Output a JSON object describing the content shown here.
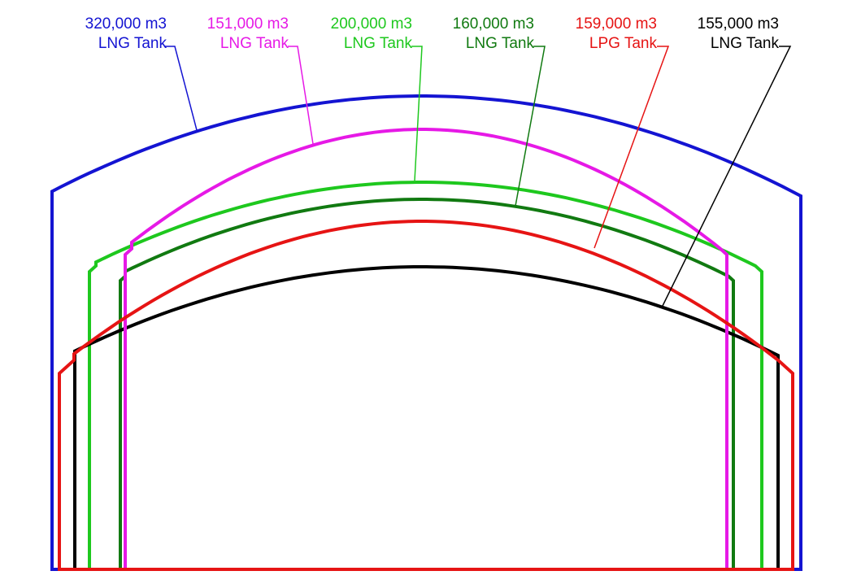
{
  "tanks": [
    {
      "id": "tank-320k-lng",
      "capacity": "320,000 m3",
      "kind": "LNG Tank",
      "color": "#1414d2"
    },
    {
      "id": "tank-151k-lng",
      "capacity": "151,000 m3",
      "kind": "LNG Tank",
      "color": "#e619e6"
    },
    {
      "id": "tank-200k-lng",
      "capacity": "200,000 m3",
      "kind": "LNG Tank",
      "color": "#1ec81e"
    },
    {
      "id": "tank-160k-lng",
      "capacity": "160,000 m3",
      "kind": "LNG Tank",
      "color": "#117a11"
    },
    {
      "id": "tank-159k-lpg",
      "capacity": "159,000 m3",
      "kind": "LPG Tank",
      "color": "#e61414"
    },
    {
      "id": "tank-155k-lng",
      "capacity": "155,000 m3",
      "kind": "LNG Tank",
      "color": "#000000"
    }
  ]
}
